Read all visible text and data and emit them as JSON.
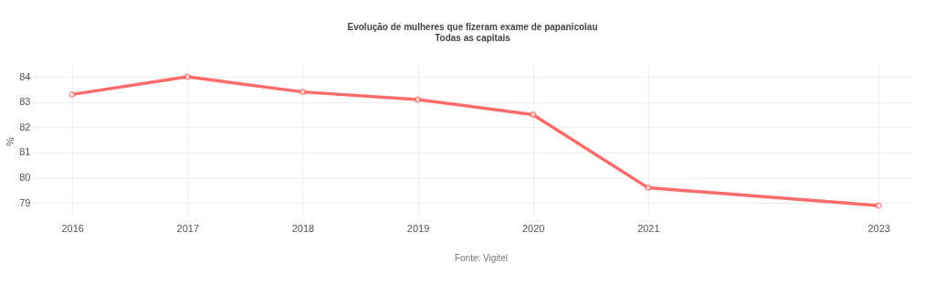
{
  "chart_data": {
    "type": "line",
    "title": "Evolução de mulheres que fizeram exame de papanicolau",
    "subtitle": "Todas as capitais",
    "ylabel": "%",
    "x": [
      2016,
      2017,
      2018,
      2019,
      2020,
      2021,
      2023
    ],
    "series": [
      {
        "color": "#ff6b6b",
        "values": [
          83.3,
          84.0,
          83.4,
          83.1,
          82.5,
          79.6,
          78.9
        ]
      }
    ],
    "xlim": [
      2015.65,
      2023.3
    ],
    "xticks": [
      {
        "value": 2016,
        "label": "2016"
      },
      {
        "value": 2017,
        "label": "2017"
      },
      {
        "value": 2018,
        "label": "2018"
      },
      {
        "value": 2019,
        "label": "2019"
      },
      {
        "value": 2020,
        "label": "2020"
      },
      {
        "value": 2021,
        "label": "2021"
      },
      {
        "value": 2023,
        "label": "2023"
      }
    ],
    "ylim": [
      78.5,
      84.4
    ],
    "yticks": [
      79,
      80,
      81,
      82,
      83,
      84
    ],
    "grid": true,
    "marker": "circle",
    "line_style": "solid",
    "legend": false,
    "annotations": [
      "Fonte: Vigitel"
    ]
  }
}
